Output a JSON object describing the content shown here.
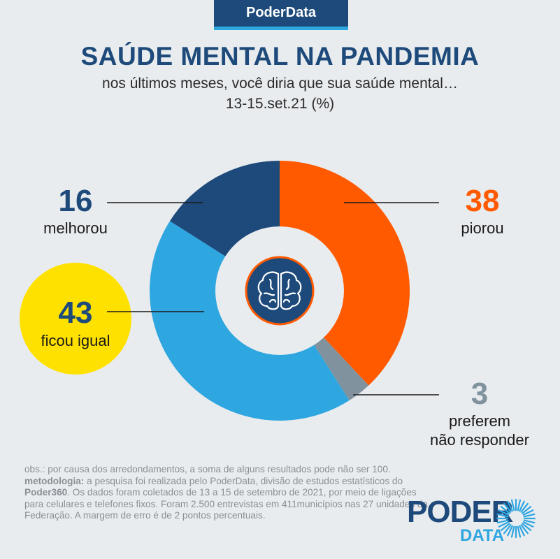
{
  "header": {
    "brand": "PoderData"
  },
  "chart_data": {
    "type": "pie",
    "title": "SAÚDE MENTAL NA PANDEMIA",
    "subtitle": "nos últimos meses, você diria que sua saúde mental…",
    "date": "13-15.set.21 (%)",
    "categories": [
      "piorou",
      "preferem não responder",
      "ficou igual",
      "melhorou"
    ],
    "values": [
      38,
      3,
      43,
      16
    ],
    "colors": [
      "#ff5a00",
      "#7f929e",
      "#2ea6e0",
      "#1d4a7a"
    ],
    "highlight": {
      "category": "ficou igual",
      "color": "#ffe100"
    },
    "center_icon": "brain-icon",
    "labels": {
      "melhorou": {
        "value": "16",
        "text": "melhorou"
      },
      "piorou": {
        "value": "38",
        "text": "piorou"
      },
      "ficou_igual": {
        "value": "43",
        "text": "ficou igual"
      },
      "nao_responder": {
        "value": "3",
        "line1": "preferem",
        "line2": "não responder"
      }
    }
  },
  "footnote": {
    "obs": "obs.: por causa dos arredondamentos, a soma de alguns resultados pode não ser 100.",
    "method_label": "metodologia:",
    "method_text_1": " a pesquisa foi realizada pelo PoderData, divisão de estudos estatísticos do ",
    "method_brand": "Poder360",
    "method_text_2": ". Os dados foram coletados de 13 a 15 de setembro de 2021, por meio de ligações para celulares e telefones fixos. Foram 2.500 entrevistas em 411municípios nas 27 unidades da Federação. A margem de erro é de 2 pontos percentuais."
  },
  "logo": {
    "word": "PODER",
    "sub": "DATA",
    "icon": "sunburst-icon"
  }
}
